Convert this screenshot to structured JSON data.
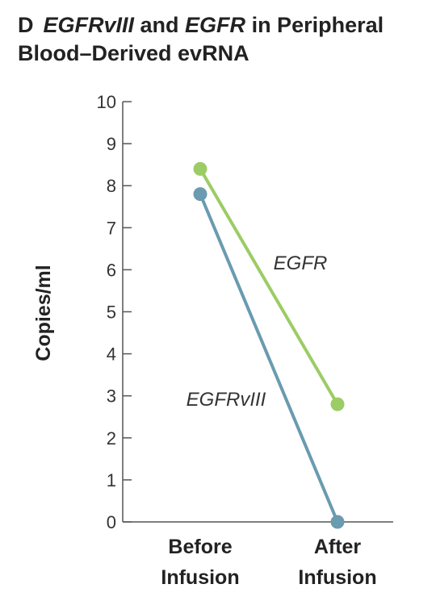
{
  "panel": {
    "letter": "D",
    "title_part1": "EGFRvIII",
    "title_part2": " and ",
    "title_part3": "EGFR",
    "title_part4": " in Peripheral",
    "title_line2": "Blood–Derived evRNA"
  },
  "chart_data": {
    "type": "line",
    "categories": [
      "Before Infusion",
      "After Infusion"
    ],
    "category_lines": [
      [
        "Before",
        "Infusion"
      ],
      [
        "After",
        "Infusion"
      ]
    ],
    "ylabel": "Copies/ml",
    "ylim": [
      0,
      10
    ],
    "yticks": [
      0,
      1,
      2,
      3,
      4,
      5,
      6,
      7,
      8,
      9,
      10
    ],
    "grid": false,
    "series": [
      {
        "name": "EGFR",
        "values": [
          8.4,
          2.8
        ],
        "color": "#9ccc65"
      },
      {
        "name": "EGFRvIII",
        "values": [
          7.8,
          0.0
        ],
        "color": "#6a9bb0"
      }
    ]
  }
}
